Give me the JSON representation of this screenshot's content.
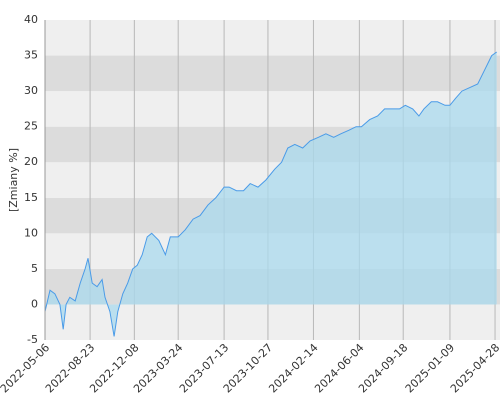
{
  "chart_data": {
    "type": "area",
    "ylabel": "[Zmiany %]",
    "color": "#4a9be8",
    "fill": "#a9d9ee",
    "grid": true,
    "ylim": [
      -5,
      40
    ],
    "yticks": [
      -5,
      0,
      5,
      10,
      15,
      20,
      25,
      30,
      35,
      40
    ],
    "xlim": [
      "2022-05-06",
      "2025-05-10"
    ],
    "xticks": [
      "2022-05-06",
      "2022-08-23",
      "2022-12-08",
      "2023-03-24",
      "2023-07-13",
      "2023-10-27",
      "2024-02-14",
      "2024-06-04",
      "2024-09-18",
      "2025-01-09",
      "2025-04-28"
    ],
    "x": [
      "2022-05-06",
      "2022-05-18",
      "2022-05-30",
      "2022-06-11",
      "2022-06-19",
      "2022-06-26",
      "2022-07-05",
      "2022-07-18",
      "2022-07-30",
      "2022-08-11",
      "2022-08-18",
      "2022-08-28",
      "2022-09-09",
      "2022-09-21",
      "2022-09-28",
      "2022-10-10",
      "2022-10-20",
      "2022-10-29",
      "2022-11-10",
      "2022-11-22",
      "2022-12-04",
      "2022-12-15",
      "2022-12-27",
      "2023-01-08",
      "2023-01-19",
      "2023-02-05",
      "2023-02-21",
      "2023-03-05",
      "2023-03-24",
      "2023-04-10",
      "2023-04-29",
      "2023-05-16",
      "2023-06-04",
      "2023-06-23",
      "2023-07-13",
      "2023-07-25",
      "2023-08-12",
      "2023-08-29",
      "2023-09-14",
      "2023-10-03",
      "2023-10-22",
      "2023-11-12",
      "2023-11-29",
      "2023-12-14",
      "2023-12-31",
      "2024-01-19",
      "2024-02-06",
      "2024-02-26",
      "2024-03-15",
      "2024-04-03",
      "2024-04-20",
      "2024-05-10",
      "2024-05-27",
      "2024-06-09",
      "2024-06-29",
      "2024-07-18",
      "2024-08-04",
      "2024-08-21",
      "2024-09-09",
      "2024-09-23",
      "2024-10-11",
      "2024-10-26",
      "2024-11-07",
      "2024-11-25",
      "2024-12-10",
      "2024-12-28",
      "2025-01-09",
      "2025-01-23",
      "2025-02-07",
      "2025-02-26",
      "2025-03-17",
      "2025-04-03",
      "2025-04-20",
      "2025-05-02"
    ],
    "values": [
      -1,
      2,
      1.5,
      0,
      -3.5,
      0,
      1,
      0.5,
      3,
      5,
      6.5,
      3,
      2.5,
      3.5,
      1,
      -1,
      -4.5,
      -1,
      1.5,
      3,
      5,
      5.5,
      7,
      9.5,
      10,
      9,
      7,
      9.5,
      9.5,
      10.5,
      12,
      12.5,
      14,
      15,
      16.5,
      16.5,
      16,
      16,
      17,
      16.5,
      17.5,
      19,
      20,
      22,
      22.5,
      22,
      23,
      23.5,
      24,
      23.5,
      24,
      24.5,
      25,
      25,
      26,
      26.5,
      27.5,
      27.5,
      27.5,
      28,
      27.5,
      26.5,
      27.5,
      28.5,
      28.5,
      28,
      28,
      29,
      30,
      30.5,
      31,
      33,
      35,
      35.5
    ]
  }
}
